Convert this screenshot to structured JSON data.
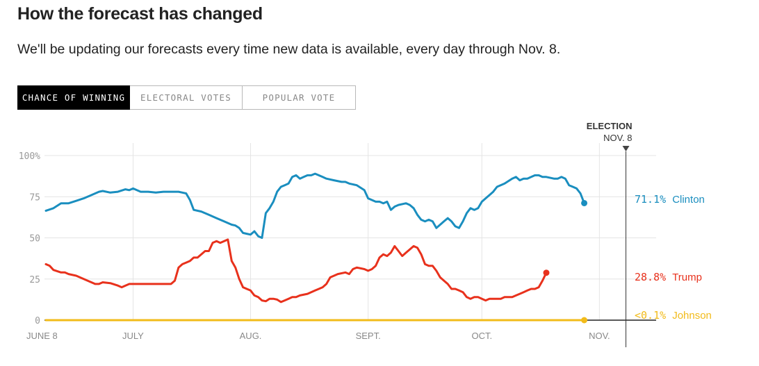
{
  "header": {
    "title": "How the forecast has changed",
    "subtitle": "We'll be updating our forecasts every time new data is available, every day through Nov. 8."
  },
  "tabs": [
    {
      "label": "CHANCE OF WINNING",
      "active": true
    },
    {
      "label": "ELECTORAL VOTES",
      "active": false
    },
    {
      "label": "POPULAR VOTE",
      "active": false
    }
  ],
  "chart_data": {
    "type": "line",
    "title": "Chance of winning",
    "ylim": [
      0,
      100
    ],
    "y_ticks": [
      {
        "value": 100,
        "label": "100%"
      },
      {
        "value": 75,
        "label": "75"
      },
      {
        "value": 50,
        "label": "50"
      },
      {
        "value": 25,
        "label": "25"
      },
      {
        "value": 0,
        "label": "0"
      }
    ],
    "xlim": [
      0,
      154
    ],
    "x_ticks": [
      {
        "day": 0,
        "label": "JUNE 8"
      },
      {
        "day": 23,
        "label": "JULY"
      },
      {
        "day": 54,
        "label": "AUG."
      },
      {
        "day": 85,
        "label": "SEPT."
      },
      {
        "day": 115,
        "label": "OCT."
      },
      {
        "day": 146,
        "label": "NOV."
      }
    ],
    "election_marker": {
      "day": 153,
      "label_top": "ELECTION",
      "label_bottom": "NOV. 8"
    },
    "series": [
      {
        "name": "Clinton",
        "color": "#1a8ebf",
        "final_label_value": "71.1%",
        "final_label_name": "Clinton",
        "points": [
          [
            0,
            66.5
          ],
          [
            2,
            68
          ],
          [
            4,
            71
          ],
          [
            6,
            71
          ],
          [
            8,
            72.5
          ],
          [
            10,
            74
          ],
          [
            12,
            76
          ],
          [
            14,
            78
          ],
          [
            15,
            78.5
          ],
          [
            17,
            77.5
          ],
          [
            19,
            78
          ],
          [
            21,
            79.5
          ],
          [
            22,
            79
          ],
          [
            23,
            80
          ],
          [
            24,
            79
          ],
          [
            25,
            78
          ],
          [
            27,
            78
          ],
          [
            29,
            77.5
          ],
          [
            31,
            78
          ],
          [
            33,
            78
          ],
          [
            35,
            78
          ],
          [
            36,
            77.5
          ],
          [
            37,
            77
          ],
          [
            38,
            73
          ],
          [
            39,
            67
          ],
          [
            41,
            66
          ],
          [
            43,
            64
          ],
          [
            45,
            62
          ],
          [
            47,
            60
          ],
          [
            49,
            58
          ],
          [
            50,
            57.5
          ],
          [
            51,
            56
          ],
          [
            52,
            53
          ],
          [
            53,
            52.5
          ],
          [
            54,
            52
          ],
          [
            55,
            54
          ],
          [
            56,
            51
          ],
          [
            57,
            50
          ],
          [
            58,
            65
          ],
          [
            59,
            68
          ],
          [
            60,
            72
          ],
          [
            61,
            78
          ],
          [
            62,
            81
          ],
          [
            63,
            82
          ],
          [
            64,
            83
          ],
          [
            65,
            87
          ],
          [
            66,
            88
          ],
          [
            67,
            86
          ],
          [
            68,
            87
          ],
          [
            69,
            88
          ],
          [
            70,
            88
          ],
          [
            71,
            89
          ],
          [
            72,
            88
          ],
          [
            73,
            87
          ],
          [
            74,
            86
          ],
          [
            76,
            85
          ],
          [
            78,
            84
          ],
          [
            79,
            84
          ],
          [
            80,
            83
          ],
          [
            82,
            82
          ],
          [
            84,
            79
          ],
          [
            85,
            74
          ],
          [
            86,
            73
          ],
          [
            87,
            72
          ],
          [
            88,
            72
          ],
          [
            89,
            71
          ],
          [
            90,
            72
          ],
          [
            91,
            67
          ],
          [
            92,
            69
          ],
          [
            93,
            70
          ],
          [
            95,
            71
          ],
          [
            96,
            70
          ],
          [
            97,
            68
          ],
          [
            98,
            64
          ],
          [
            99,
            61
          ],
          [
            100,
            60
          ],
          [
            101,
            61
          ],
          [
            102,
            60
          ],
          [
            103,
            56
          ],
          [
            104,
            58
          ],
          [
            105,
            60
          ],
          [
            106,
            62
          ],
          [
            107,
            60
          ],
          [
            108,
            57
          ],
          [
            109,
            56
          ],
          [
            110,
            60
          ],
          [
            111,
            65
          ],
          [
            112,
            68
          ],
          [
            113,
            67
          ],
          [
            114,
            68
          ],
          [
            115,
            72
          ],
          [
            116,
            74
          ],
          [
            117,
            76
          ],
          [
            118,
            78
          ],
          [
            119,
            81
          ],
          [
            121,
            83
          ],
          [
            123,
            86
          ],
          [
            124,
            87
          ],
          [
            125,
            85
          ],
          [
            126,
            86
          ],
          [
            127,
            86
          ],
          [
            128,
            87
          ],
          [
            129,
            88
          ],
          [
            130,
            88
          ],
          [
            131,
            87
          ],
          [
            132,
            87
          ],
          [
            134,
            86
          ],
          [
            135,
            86
          ],
          [
            136,
            87
          ],
          [
            137,
            86
          ],
          [
            138,
            82
          ],
          [
            139,
            81
          ],
          [
            140,
            80
          ],
          [
            141,
            77
          ],
          [
            142,
            71.1
          ]
        ]
      },
      {
        "name": "Trump",
        "color": "#e8311c",
        "final_label_value": "28.8%",
        "final_label_name": "Trump",
        "points": [
          [
            0,
            34
          ],
          [
            1,
            33
          ],
          [
            2,
            30.5
          ],
          [
            4,
            29
          ],
          [
            5,
            29
          ],
          [
            6,
            28
          ],
          [
            8,
            27
          ],
          [
            10,
            25
          ],
          [
            12,
            23
          ],
          [
            13,
            22
          ],
          [
            14,
            22
          ],
          [
            15,
            23
          ],
          [
            17,
            22.5
          ],
          [
            19,
            21
          ],
          [
            20,
            20
          ],
          [
            21,
            21
          ],
          [
            22,
            22
          ],
          [
            23,
            22
          ],
          [
            25,
            22
          ],
          [
            27,
            22
          ],
          [
            29,
            22
          ],
          [
            31,
            22
          ],
          [
            33,
            22
          ],
          [
            34,
            24
          ],
          [
            35,
            32
          ],
          [
            36,
            34
          ],
          [
            37,
            35
          ],
          [
            38,
            36
          ],
          [
            39,
            38
          ],
          [
            40,
            38
          ],
          [
            41,
            40
          ],
          [
            42,
            42
          ],
          [
            43,
            42
          ],
          [
            44,
            47
          ],
          [
            45,
            48
          ],
          [
            46,
            47
          ],
          [
            47,
            48
          ],
          [
            48,
            49
          ],
          [
            49,
            36
          ],
          [
            50,
            32
          ],
          [
            51,
            25
          ],
          [
            52,
            20
          ],
          [
            53,
            19
          ],
          [
            54,
            18
          ],
          [
            55,
            15
          ],
          [
            56,
            14
          ],
          [
            57,
            12
          ],
          [
            58,
            11.5
          ],
          [
            59,
            13
          ],
          [
            60,
            13
          ],
          [
            61,
            12.5
          ],
          [
            62,
            11
          ],
          [
            63,
            12
          ],
          [
            64,
            13
          ],
          [
            65,
            14
          ],
          [
            66,
            14
          ],
          [
            67,
            15
          ],
          [
            69,
            16
          ],
          [
            71,
            18
          ],
          [
            72,
            19
          ],
          [
            73,
            20
          ],
          [
            74,
            22
          ],
          [
            75,
            26
          ],
          [
            77,
            28
          ],
          [
            79,
            29
          ],
          [
            80,
            28
          ],
          [
            81,
            31
          ],
          [
            82,
            32
          ],
          [
            84,
            31
          ],
          [
            85,
            30
          ],
          [
            86,
            31
          ],
          [
            87,
            33
          ],
          [
            88,
            38
          ],
          [
            89,
            40
          ],
          [
            90,
            39
          ],
          [
            91,
            41
          ],
          [
            92,
            45
          ],
          [
            93,
            42
          ],
          [
            94,
            39
          ],
          [
            95,
            41
          ],
          [
            96,
            43
          ],
          [
            97,
            45
          ],
          [
            98,
            44
          ],
          [
            99,
            40
          ],
          [
            100,
            34
          ],
          [
            101,
            33
          ],
          [
            102,
            33
          ],
          [
            103,
            30
          ],
          [
            104,
            26
          ],
          [
            105,
            24
          ],
          [
            106,
            22
          ],
          [
            107,
            19
          ],
          [
            108,
            19
          ],
          [
            109,
            18
          ],
          [
            110,
            17
          ],
          [
            111,
            14
          ],
          [
            112,
            13
          ],
          [
            113,
            14
          ],
          [
            114,
            14
          ],
          [
            115,
            13
          ],
          [
            116,
            12
          ],
          [
            117,
            13
          ],
          [
            118,
            13
          ],
          [
            120,
            13
          ],
          [
            121,
            14
          ],
          [
            122,
            14
          ],
          [
            123,
            14
          ],
          [
            124,
            15
          ],
          [
            125,
            16
          ],
          [
            126,
            17
          ],
          [
            127,
            18
          ],
          [
            128,
            19
          ],
          [
            129,
            19
          ],
          [
            130,
            20
          ],
          [
            131,
            24
          ],
          [
            132,
            28.8
          ]
        ]
      },
      {
        "name": "Johnson",
        "color": "#f2bb1a",
        "final_label_value": "<0.1%",
        "final_label_name": "Johnson",
        "points": [
          [
            0,
            0
          ],
          [
            142,
            0
          ]
        ]
      }
    ]
  }
}
